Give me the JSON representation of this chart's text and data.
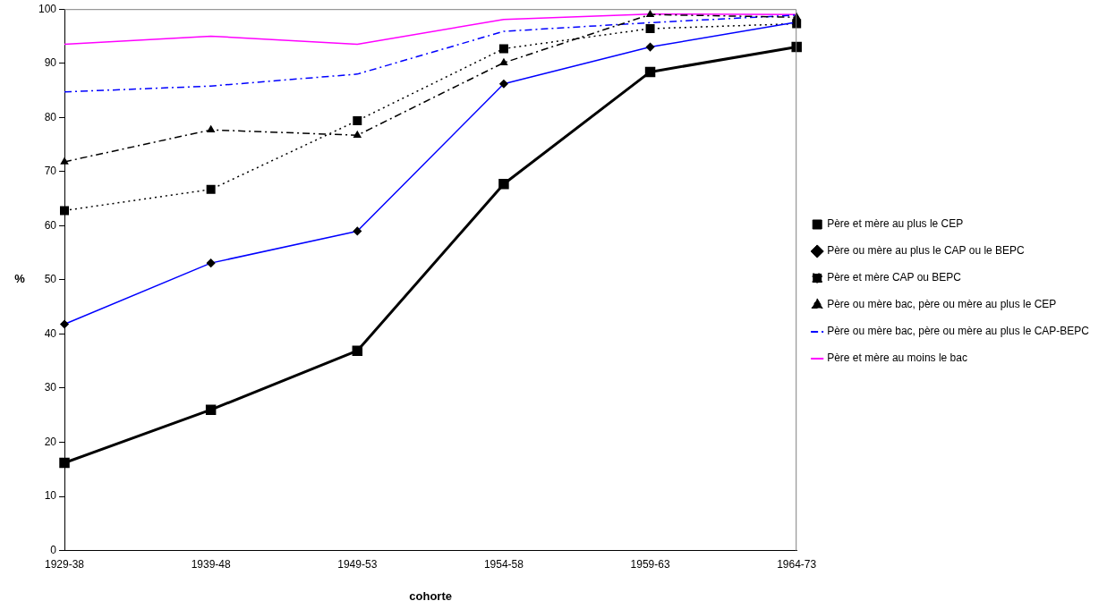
{
  "chart_data": {
    "type": "line",
    "xlabel": "cohorte",
    "ylabel": "%",
    "categories": [
      "1929-38",
      "1939-48",
      "1949-53",
      "1954-58",
      "1959-63",
      "1964-73"
    ],
    "ylim": [
      0,
      100
    ],
    "yticks": [
      0,
      10,
      20,
      30,
      40,
      50,
      60,
      70,
      80,
      90,
      100
    ],
    "grid": false,
    "legend": "right",
    "series": [
      {
        "name": "Père et mère au plus le CEP",
        "color": "#000000",
        "marker": "square",
        "line_style": "solid",
        "values": [
          16.2,
          26.0,
          36.9,
          67.7,
          88.4,
          93.0
        ]
      },
      {
        "name": "Père ou mère au plus le CAP ou le BEPC",
        "color": "#0000ff",
        "marker": "diamond",
        "line_style": "solid",
        "values": [
          41.8,
          53.1,
          59.0,
          86.2,
          93.0,
          97.6
        ]
      },
      {
        "name": "Père et mère CAP ou BEPC",
        "color": "#000000",
        "marker": "square",
        "line_style": "dotted",
        "values": [
          62.8,
          66.7,
          79.4,
          92.7,
          96.4,
          97.3
        ]
      },
      {
        "name": "Père ou mère bac, père ou mère au plus le CEP",
        "color": "#000000",
        "marker": "triangle",
        "line_style": "dashed",
        "values": [
          71.8,
          77.7,
          76.7,
          90.1,
          99.0,
          98.5
        ]
      },
      {
        "name": "Père ou mère bac, père ou mère au plus le CAP-BEPC",
        "color": "#0000ff",
        "marker": "none",
        "line_style": "dashed",
        "values": [
          84.7,
          85.8,
          88.0,
          95.9,
          97.5,
          98.9
        ]
      },
      {
        "name": "Père et mère au moins le bac",
        "color": "#ff00ff",
        "marker": "none",
        "line_style": "solid",
        "values": [
          93.5,
          95.0,
          93.5,
          98.1,
          99.1,
          99.0
        ]
      }
    ]
  }
}
